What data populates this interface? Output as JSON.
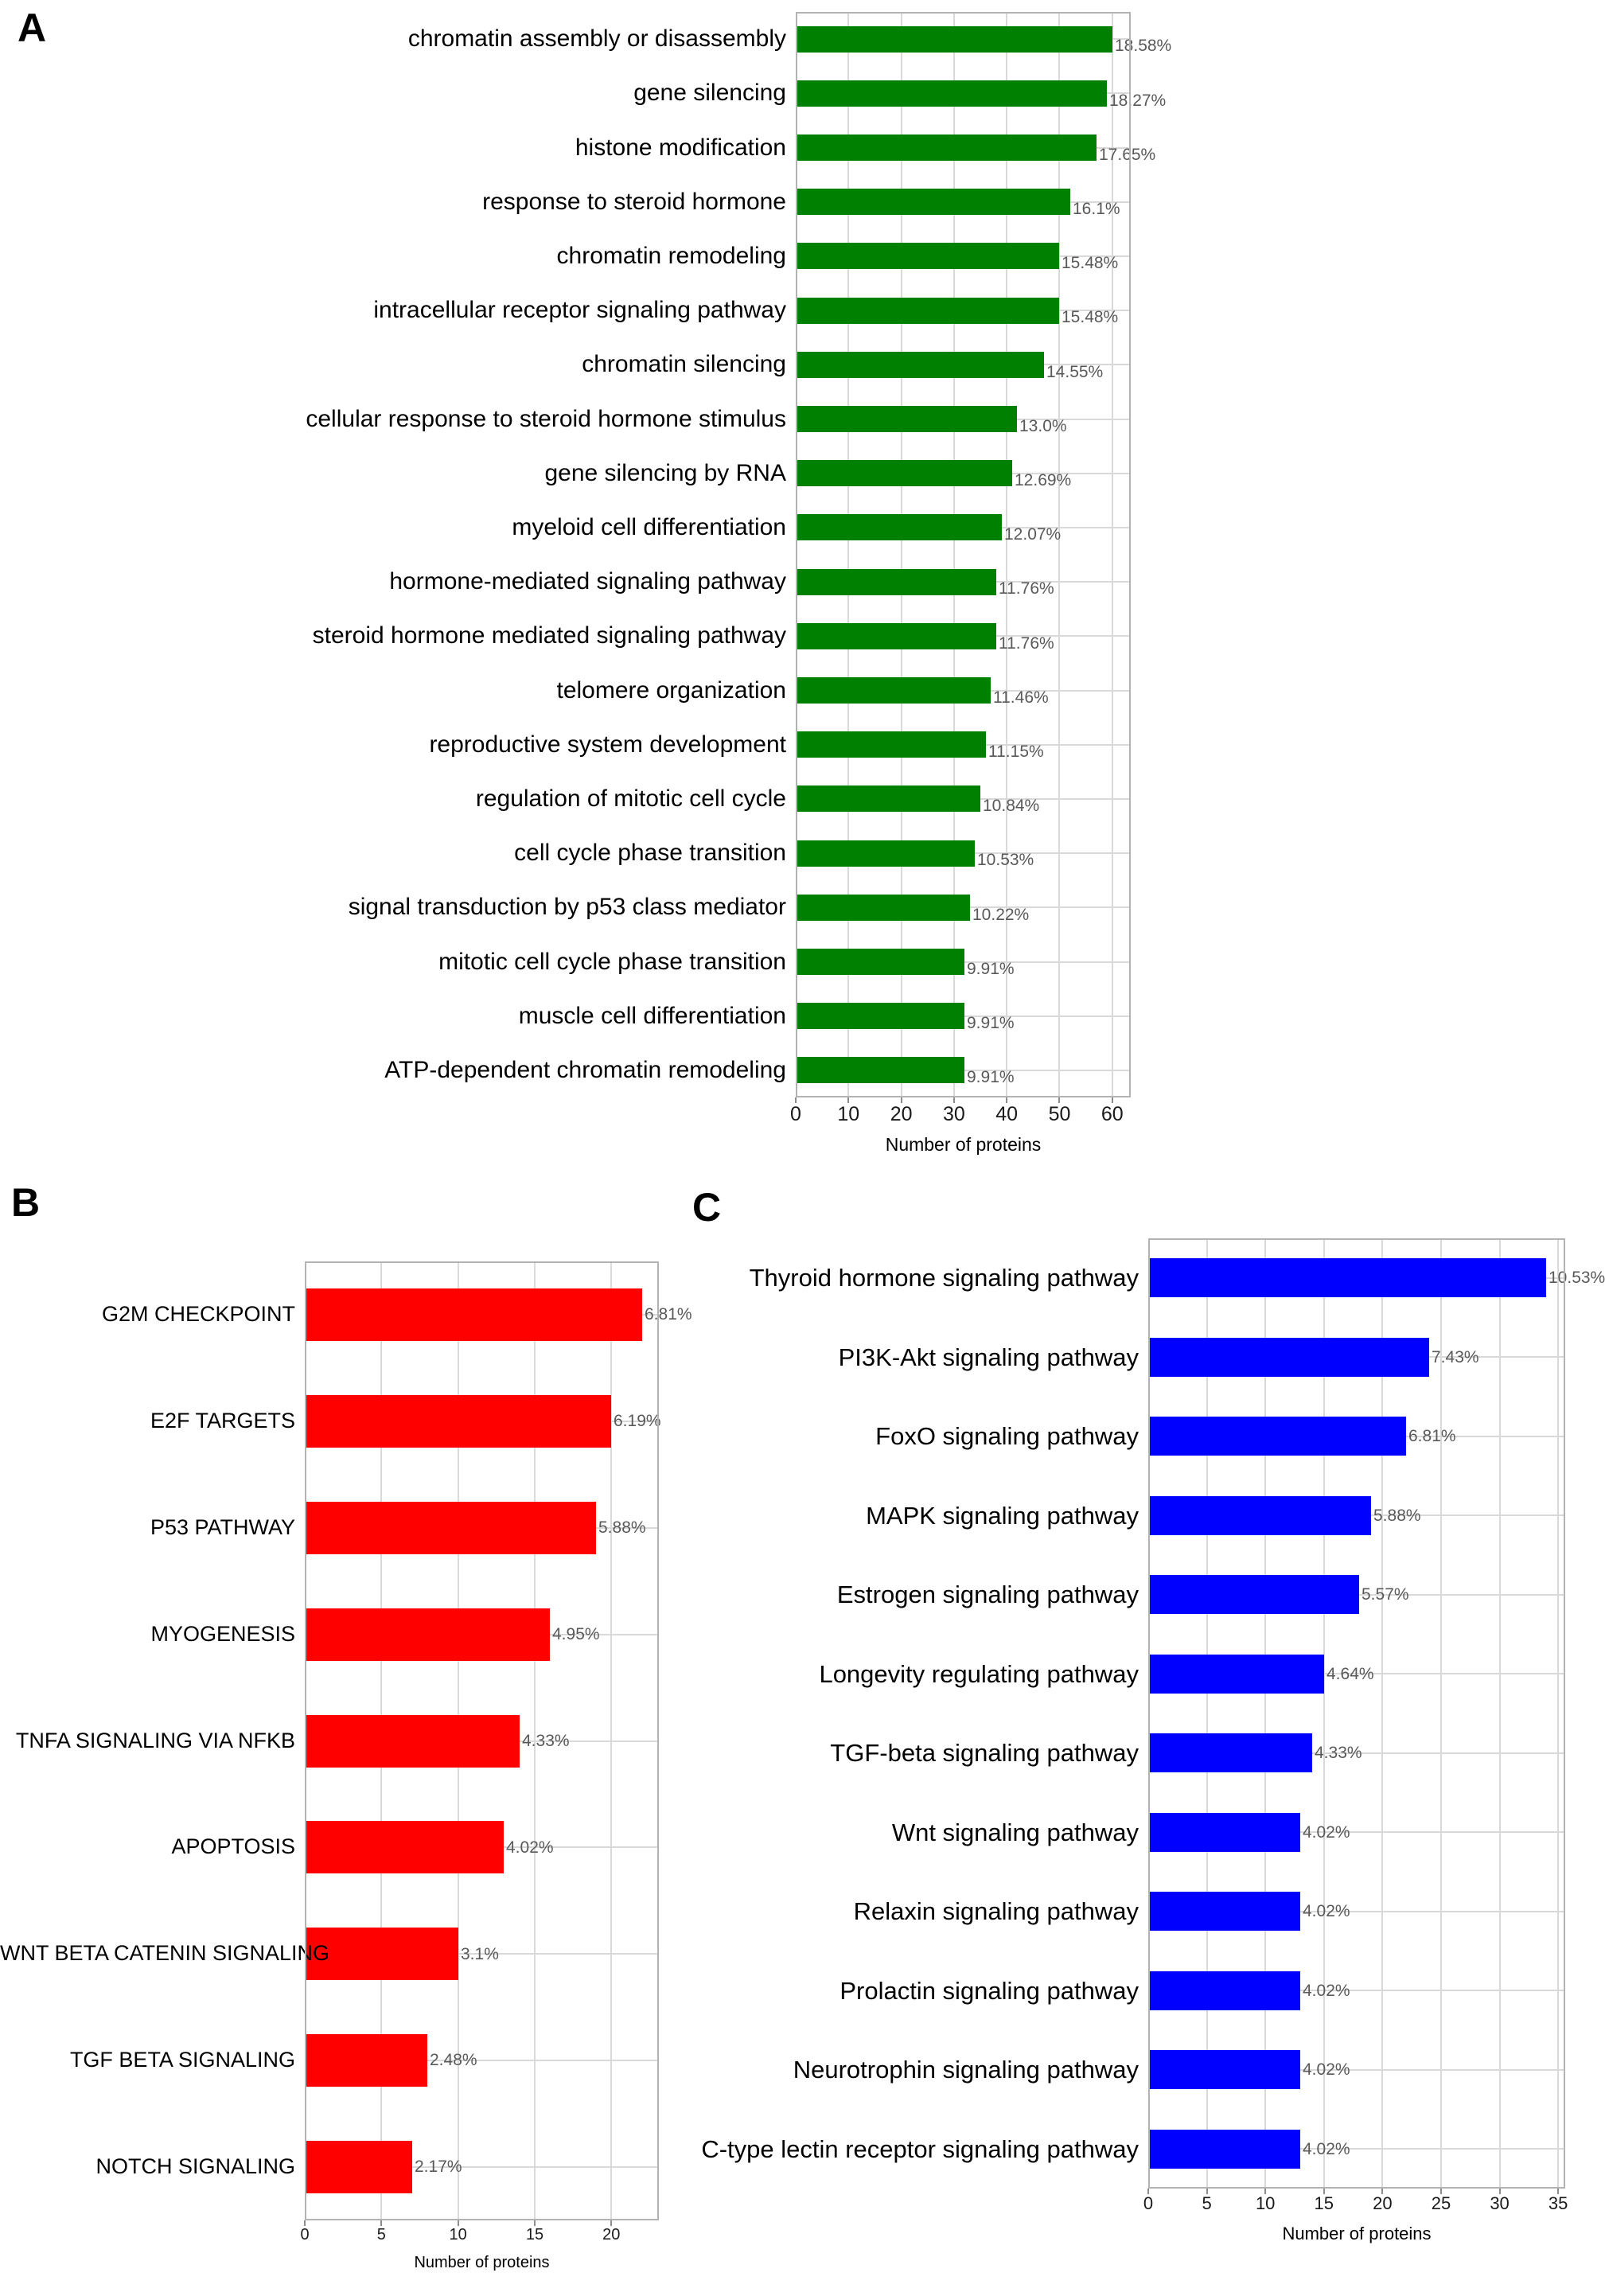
{
  "figure": {
    "background_color": "#ffffff",
    "grid_color": "#d9d9d9",
    "plot_border_color": "#b3b3b3",
    "percent_label_color": "#595959"
  },
  "chart_data": [
    {
      "type": "bar",
      "orientation": "horizontal",
      "panel_label": "A",
      "title": "",
      "xlabel": "Number of proteins",
      "ylabel": "",
      "bar_color": "#008000",
      "grid": true,
      "x_ticks": [
        0,
        10,
        20,
        30,
        40,
        50,
        60
      ],
      "xlim": [
        0,
        63.5
      ],
      "categories": [
        "chromatin assembly or disassembly",
        "gene silencing",
        "histone modification",
        "response to steroid hormone",
        "chromatin remodeling",
        "intracellular receptor signaling pathway",
        "chromatin silencing",
        "cellular response to steroid hormone stimulus",
        "gene silencing by RNA",
        "myeloid cell differentiation",
        "hormone-mediated signaling pathway",
        "steroid hormone mediated signaling pathway",
        "telomere organization",
        "reproductive system development",
        "regulation of mitotic cell cycle",
        "cell cycle phase transition",
        "signal transduction by p53 class mediator",
        "mitotic cell cycle phase transition",
        "muscle cell differentiation",
        "ATP-dependent chromatin remodeling"
      ],
      "values": [
        60,
        59,
        57,
        52,
        50,
        50,
        47,
        42,
        41,
        39,
        38,
        38,
        37,
        36,
        35,
        34,
        33,
        32,
        32,
        32
      ],
      "percent_labels": [
        "18.58%",
        "18.27%",
        "17.65%",
        "16.1%",
        "15.48%",
        "15.48%",
        "14.55%",
        "13.0%",
        "12.69%",
        "12.07%",
        "11.76%",
        "11.76%",
        "11.46%",
        "11.15%",
        "10.84%",
        "10.53%",
        "10.22%",
        "9.91%",
        "9.91%",
        "9.91%"
      ]
    },
    {
      "type": "bar",
      "orientation": "horizontal",
      "panel_label": "B",
      "title": "",
      "xlabel": "Number of proteins",
      "ylabel": "",
      "bar_color": "#ff0000",
      "grid": true,
      "x_ticks": [
        0,
        5,
        10,
        15,
        20
      ],
      "xlim": [
        0,
        23.1
      ],
      "categories": [
        "G2M CHECKPOINT",
        "E2F TARGETS",
        "P53 PATHWAY",
        "MYOGENESIS",
        "TNFA SIGNALING VIA NFKB",
        "APOPTOSIS",
        "WNT BETA CATENIN SIGNALING",
        "TGF BETA SIGNALING",
        "NOTCH SIGNALING"
      ],
      "values": [
        22,
        20,
        19,
        16,
        14,
        13,
        10,
        8,
        7
      ],
      "percent_labels": [
        "6.81%",
        "6.19%",
        "5.88%",
        "4.95%",
        "4.33%",
        "4.02%",
        "3.1%",
        "2.48%",
        "2.17%"
      ]
    },
    {
      "type": "bar",
      "orientation": "horizontal",
      "panel_label": "C",
      "title": "",
      "xlabel": "Number of proteins",
      "ylabel": "",
      "bar_color": "#0000ff",
      "grid": true,
      "x_ticks": [
        0,
        5,
        10,
        15,
        20,
        25,
        30,
        35
      ],
      "xlim": [
        0,
        35.6
      ],
      "categories": [
        "Thyroid hormone signaling pathway",
        "PI3K-Akt signaling pathway",
        "FoxO signaling pathway",
        "MAPK signaling pathway",
        "Estrogen signaling pathway",
        "Longevity regulating pathway",
        "TGF-beta signaling pathway",
        "Wnt signaling pathway",
        "Relaxin signaling pathway",
        "Prolactin signaling pathway",
        "Neurotrophin signaling pathway",
        "C-type lectin receptor signaling pathway"
      ],
      "values": [
        34,
        24,
        22,
        19,
        18,
        15,
        14,
        13,
        13,
        13,
        13,
        13
      ],
      "percent_labels": [
        "10.53%",
        "7.43%",
        "6.81%",
        "5.88%",
        "5.57%",
        "4.64%",
        "4.33%",
        "4.02%",
        "4.02%",
        "4.02%",
        "4.02%",
        "4.02%"
      ]
    }
  ]
}
